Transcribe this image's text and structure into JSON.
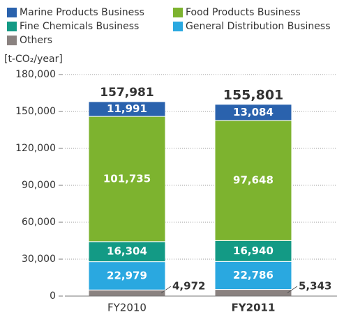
{
  "chart_data": {
    "type": "stacked_bar",
    "y_label": "[t-CO₂/year]",
    "categories": [
      "FY2010",
      "FY2011"
    ],
    "series": [
      {
        "name": "Marine Products Business",
        "color": "#2a62ad",
        "values": [
          11991,
          13084
        ],
        "value_labels": [
          "11,991",
          "13,084"
        ]
      },
      {
        "name": "Food Products Business",
        "color": "#7db32f",
        "values": [
          101735,
          97648
        ],
        "value_labels": [
          "101,735",
          "97,648"
        ]
      },
      {
        "name": "Fine Chemicals Business",
        "color": "#139a85",
        "values": [
          16304,
          16940
        ],
        "value_labels": [
          "16,304",
          "16,940"
        ]
      },
      {
        "name": "General Distribution Business",
        "color": "#2aa8e0",
        "values": [
          22979,
          22786
        ],
        "value_labels": [
          "22,979",
          "22,786"
        ]
      },
      {
        "name": "Others",
        "color": "#8a8280",
        "values": [
          4972,
          5343
        ],
        "value_labels": [
          "4,972",
          "5,343"
        ]
      }
    ],
    "totals": {
      "values": [
        157981,
        155801
      ],
      "value_labels": [
        "157,981",
        "155,801"
      ]
    },
    "ylim": [
      0,
      180000
    ],
    "yticks": [
      0,
      {
        "value": 30000,
        "label": "30,000"
      },
      {
        "value": 60000,
        "label": "60,000"
      },
      {
        "value": 90000,
        "label": "90,000"
      },
      {
        "value": 120000,
        "label": "120,000"
      },
      {
        "value": 150000,
        "label": "150,000"
      },
      {
        "value": 180000,
        "label": "180,000"
      }
    ],
    "grid": true
  }
}
